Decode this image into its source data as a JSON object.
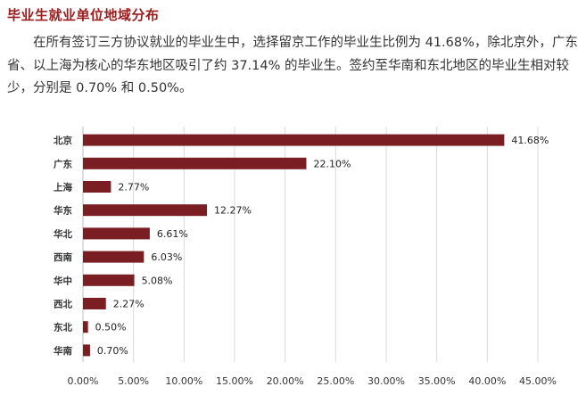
{
  "page": {
    "heading": "毕业生就业单位地域分布",
    "paragraph": "在所有签订三方协议就业的毕业生中，选择留京工作的毕业生比例为 41.68%，除北京外，广东省、以上海为核心的华东地区吸引了约 37.14% 的毕业生。签约至华南和东北地区的毕业生相对较少，分别是 0.70% 和 0.50%。"
  },
  "chart_data": {
    "type": "bar",
    "orientation": "horizontal",
    "categories": [
      "北京",
      "广东",
      "上海",
      "华东",
      "华北",
      "西南",
      "华中",
      "西北",
      "东北",
      "华南"
    ],
    "values": [
      41.68,
      22.1,
      2.77,
      12.27,
      6.61,
      6.03,
      5.08,
      2.27,
      0.5,
      0.7
    ],
    "value_labels": [
      "41.68%",
      "22.10%",
      "2.77%",
      "12.27%",
      "6.61%",
      "6.03%",
      "5.08%",
      "2.27%",
      "0.50%",
      "0.70%"
    ],
    "xlim": [
      0,
      45
    ],
    "x_ticks": [
      "0.00%",
      "5.00%",
      "10.00%",
      "15.00%",
      "20.00%",
      "25.00%",
      "30.00%",
      "35.00%",
      "40.00%",
      "45.00%"
    ],
    "grid": true,
    "legend": "none",
    "bar_color": "#7b1e24"
  }
}
